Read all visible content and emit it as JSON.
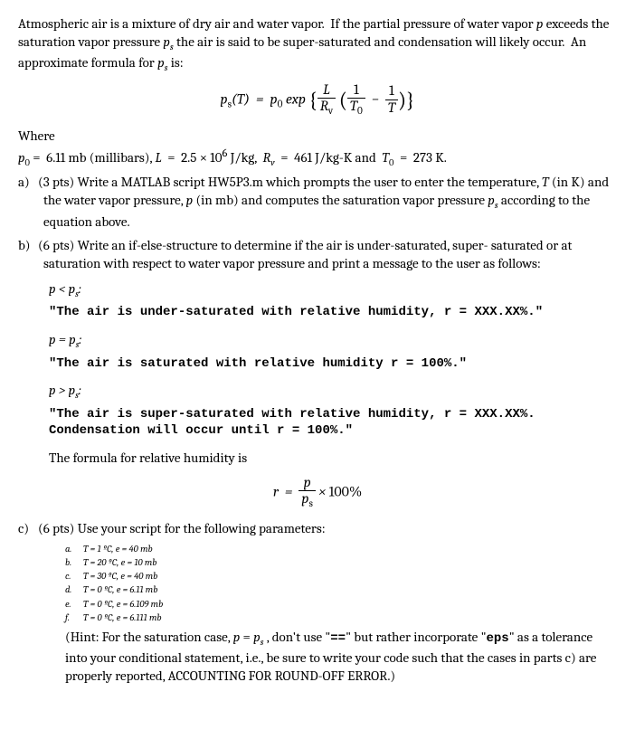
{
  "intro": "Atmospheric air is a mixture of dry air and water vapor.  If the partial pressure of water vapor p exceeds the saturation vapor pressure pₛ the air is said to be super-saturated and condensation will likely occur.  An approximate formula for pₛ is:",
  "where": "Where",
  "constants": "p₀ = 6.11 mb (millibars), L  =  2.5 × 10⁶ J/kg,  Rᵥ  =  461 J/kg-K and  T₀  =  273 K.",
  "parts": {
    "a": {
      "label": "a)",
      "text": "(3 pts) Write a MATLAB script HW5P3.m which prompts the user to enter the temperature, T (in K) and the water vapor pressure, p (in mb) and computes the saturation vapor pressure pₛ according to the equation above."
    },
    "b": {
      "label": "b)",
      "text": "(6 pts) Write an if-else-structure to determine if the air is under-saturated, super-saturated or at saturation with respect to water vapor pressure and print a message to the user as follows:",
      "cases": {
        "under": {
          "cond": "p < pₛ:",
          "msg": "\"The air is under-saturated with relative humidity, r = XXX.XX%.\""
        },
        "sat": {
          "cond": "p = pₛ:",
          "msg": "\"The air is saturated with relative humidity r = 100%.\""
        },
        "super": {
          "cond": "p > pₛ:",
          "msg": "\"The air is super-saturated with relative humidity, r = XXX.XX%. Condensation will occur until r = 100%.\""
        }
      },
      "rh_label": "The formula for relative humidity is"
    },
    "c": {
      "label": "c)",
      "text": "(6 pts) Use your script for the following parameters:",
      "items": {
        "a": {
          "l": "a.",
          "t": "T = 1 ºC, e = 40 mb"
        },
        "b": {
          "l": "b.",
          "t": "T = 20 ºC, e = 10 mb"
        },
        "c": {
          "l": "c.",
          "t": "T = 30 ºC, e = 40 mb"
        },
        "d": {
          "l": "d.",
          "t": "T = 0 ºC, e = 6.11 mb"
        },
        "e": {
          "l": "e.",
          "t": "T = 0 ºC, e = 6.109 mb"
        },
        "f": {
          "l": "f.",
          "t": "T = 0 ºC, e = 6.111 mb"
        }
      },
      "hint": "(Hint: For the saturation case, p = pₛ , don't use \"==\" but rather incorporate \"eps\" as a tolerance into your conditional statement, i.e., be sure to write your code such that the cases in parts c) are properly reported, ACCOUNTING FOR ROUND-OFF ERROR.)"
    }
  }
}
